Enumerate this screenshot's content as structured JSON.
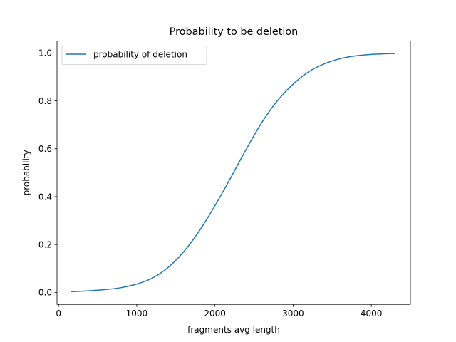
{
  "chart_data": {
    "type": "line",
    "title": "Probability to be deletion",
    "xlabel": "fragments avg length",
    "ylabel": "probability",
    "xlim": [
      -20,
      4500
    ],
    "ylim": [
      -0.05,
      1.05
    ],
    "xticks": [
      0,
      1000,
      2000,
      3000,
      4000
    ],
    "xtick_labels": [
      "0",
      "1000",
      "2000",
      "3000",
      "4000"
    ],
    "yticks": [
      0.0,
      0.2,
      0.4,
      0.6,
      0.8,
      1.0
    ],
    "ytick_labels": [
      "0.0",
      "0.2",
      "0.4",
      "0.6",
      "0.8",
      "1.0"
    ],
    "grid": false,
    "legend_position": "top-left",
    "series": [
      {
        "name": "probability of deletion",
        "color": "#1f77b4",
        "x": [
          170,
          400,
          600,
          800,
          1000,
          1200,
          1400,
          1600,
          1800,
          2000,
          2200,
          2400,
          2600,
          2800,
          3000,
          3200,
          3400,
          3600,
          3800,
          4000,
          4200,
          4300
        ],
        "y": [
          0.003,
          0.007,
          0.012,
          0.02,
          0.035,
          0.06,
          0.104,
          0.17,
          0.257,
          0.362,
          0.478,
          0.598,
          0.71,
          0.801,
          0.87,
          0.922,
          0.955,
          0.976,
          0.988,
          0.994,
          0.997,
          0.998
        ]
      }
    ]
  }
}
